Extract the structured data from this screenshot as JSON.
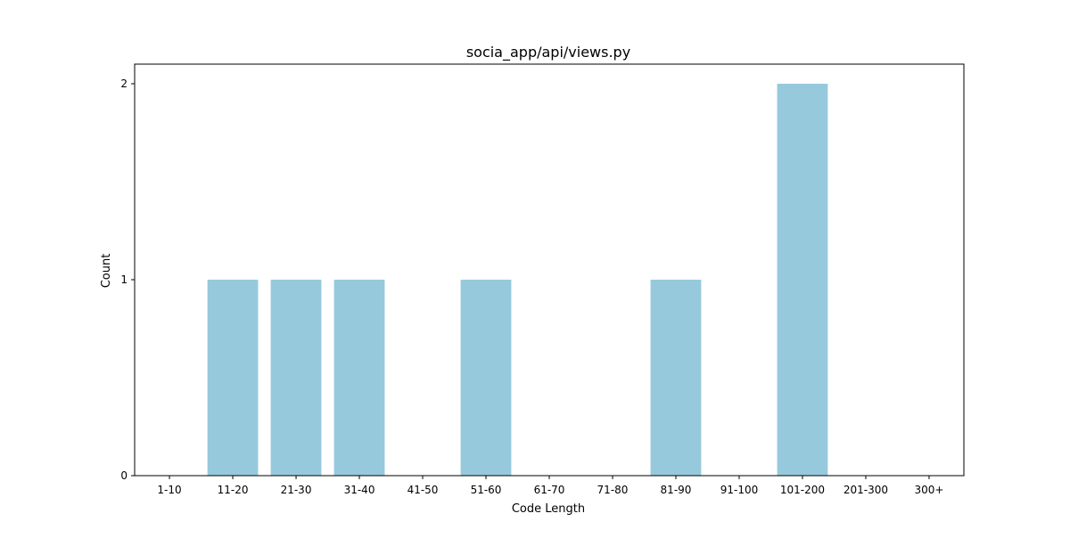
{
  "chart_data": {
    "type": "bar",
    "title": "socia_app/api/views.py",
    "xlabel": "Code Length",
    "ylabel": "Count",
    "categories": [
      "1-10",
      "11-20",
      "21-30",
      "31-40",
      "41-50",
      "51-60",
      "61-70",
      "71-80",
      "81-90",
      "91-100",
      "101-200",
      "201-300",
      "300+"
    ],
    "values": [
      0,
      1,
      1,
      1,
      0,
      1,
      0,
      0,
      1,
      0,
      2,
      0,
      0
    ],
    "ylim": [
      0,
      2.1
    ],
    "yticks": [
      "0",
      "1",
      "2"
    ],
    "bar_color": "#96c9dc",
    "grid": false,
    "legend": "none"
  }
}
